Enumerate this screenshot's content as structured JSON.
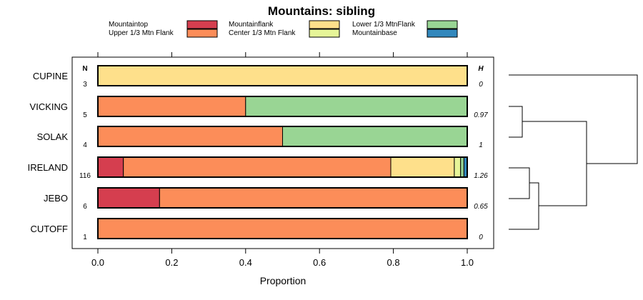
{
  "chart_data": {
    "type": "bar",
    "stacked": true,
    "orientation": "horizontal",
    "title": "Mountains: sibling",
    "xlabel": "Proportion",
    "xlim": [
      0,
      1
    ],
    "xticks": [
      "0.0",
      "0.2",
      "0.4",
      "0.6",
      "0.8",
      "1.0"
    ],
    "n_header": "N",
    "h_header": "H",
    "series": [
      {
        "name": "Mountaintop",
        "color": "#d53e4f"
      },
      {
        "name": "Upper 1/3 Mtn Flank",
        "color": "#fc8d59"
      },
      {
        "name": "Mountainflank",
        "color": "#fee08b"
      },
      {
        "name": "Center 1/3 Mtn Flank",
        "color": "#e6f598"
      },
      {
        "name": "Lower 1/3 MtnFlank",
        "color": "#99d594"
      },
      {
        "name": "Mountainbase",
        "color": "#3288bd"
      }
    ],
    "rows": [
      {
        "label": "CUPINE",
        "n": "3",
        "h": "0",
        "values": [
          0,
          0,
          1,
          0,
          0,
          0
        ]
      },
      {
        "label": "VICKING",
        "n": "5",
        "h": "0.97",
        "values": [
          0,
          0.4,
          0,
          0,
          0.6,
          0
        ]
      },
      {
        "label": "SOLAK",
        "n": "4",
        "h": "1",
        "values": [
          0,
          0.5,
          0,
          0,
          0.5,
          0
        ]
      },
      {
        "label": "IRELAND",
        "n": "116",
        "h": "1.26",
        "values": [
          0.069,
          0.724,
          0.172,
          0.017,
          0.009,
          0.009
        ]
      },
      {
        "label": "JEBO",
        "n": "6",
        "h": "0.65",
        "values": [
          0.167,
          0.833,
          0,
          0,
          0,
          0
        ]
      },
      {
        "label": "CUTOFF",
        "n": "1",
        "h": "0",
        "values": [
          0,
          1,
          0,
          0,
          0,
          0
        ]
      }
    ]
  }
}
